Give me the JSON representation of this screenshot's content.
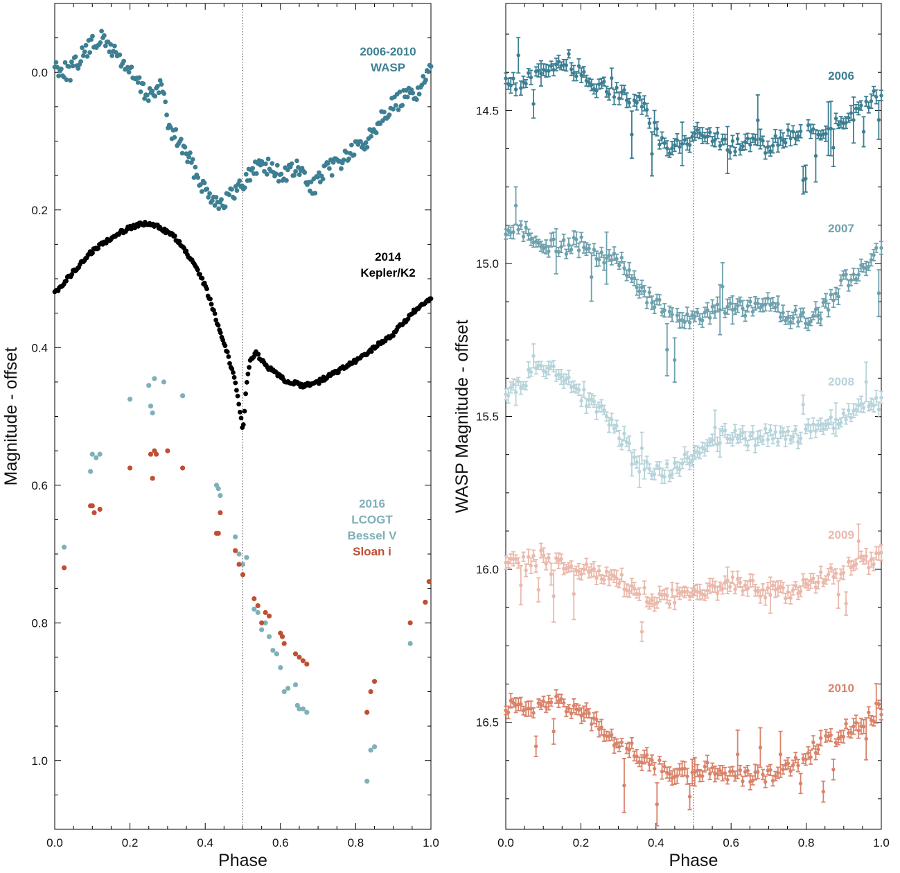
{
  "colors": {
    "wasp_2006": "#3d7f92",
    "wasp_2007": "#6ea1ad",
    "wasp_2008": "#b8d4db",
    "wasp_2009": "#eab9ab",
    "wasp_2010": "#d9836b",
    "kepler": "#000000",
    "lcogt_v": "#7fb0b8",
    "lcogt_i": "#bf4f33",
    "axis": "#000000"
  },
  "chart_data": [
    {
      "type": "scatter",
      "xlabel": "Phase",
      "ylabel": "Magnitude - offset",
      "xlim": [
        0.0,
        1.0
      ],
      "ylim": [
        1.1,
        -0.1
      ],
      "y_inverted": true,
      "xticks": [
        "0.0",
        "0.2",
        "0.4",
        "0.6",
        "0.8",
        "1.0"
      ],
      "yticks": [
        "0.0",
        "0.2",
        "0.4",
        "0.6",
        "0.8",
        "1.0"
      ],
      "reference_line_x": 0.5,
      "annotations": [
        {
          "lines": [
            "2006-2010",
            "WASP"
          ],
          "color": "wasp_2006"
        },
        {
          "lines": [
            "2014",
            "Kepler/K2"
          ],
          "color": "kepler"
        },
        {
          "lines": [
            "2016",
            "LCOGT",
            "Bessel V"
          ],
          "color": "lcogt_v"
        },
        {
          "lines": [
            "Sloan i"
          ],
          "color": "lcogt_i"
        }
      ],
      "series": [
        {
          "key": "wasp",
          "color": "wasp_2006",
          "marker": "dot",
          "nodes": [
            [
              0.0,
              -0.01
            ],
            [
              0.04,
              0.0
            ],
            [
              0.08,
              -0.03
            ],
            [
              0.12,
              -0.05
            ],
            [
              0.16,
              -0.03
            ],
            [
              0.2,
              0.0
            ],
            [
              0.24,
              0.03
            ],
            [
              0.27,
              0.03
            ],
            [
              0.29,
              0.02
            ],
            [
              0.3,
              0.08
            ],
            [
              0.33,
              0.1
            ],
            [
              0.36,
              0.13
            ],
            [
              0.4,
              0.17
            ],
            [
              0.44,
              0.19
            ],
            [
              0.47,
              0.18
            ],
            [
              0.5,
              0.16
            ],
            [
              0.55,
              0.13
            ],
            [
              0.6,
              0.15
            ],
            [
              0.65,
              0.14
            ],
            [
              0.68,
              0.17
            ],
            [
              0.73,
              0.14
            ],
            [
              0.78,
              0.12
            ],
            [
              0.83,
              0.1
            ],
            [
              0.87,
              0.06
            ],
            [
              0.92,
              0.04
            ],
            [
              0.96,
              0.03
            ],
            [
              1.0,
              0.0
            ]
          ]
        },
        {
          "key": "kepler",
          "color": "kepler",
          "marker": "dot",
          "nodes": [
            [
              0.0,
              0.32
            ],
            [
              0.05,
              0.29
            ],
            [
              0.1,
              0.26
            ],
            [
              0.15,
              0.24
            ],
            [
              0.2,
              0.225
            ],
            [
              0.24,
              0.22
            ],
            [
              0.28,
              0.225
            ],
            [
              0.32,
              0.24
            ],
            [
              0.36,
              0.27
            ],
            [
              0.4,
              0.31
            ],
            [
              0.43,
              0.36
            ],
            [
              0.46,
              0.41
            ],
            [
              0.48,
              0.45
            ],
            [
              0.495,
              0.5
            ],
            [
              0.5,
              0.52
            ],
            [
              0.505,
              0.49
            ],
            [
              0.51,
              0.45
            ],
            [
              0.52,
              0.42
            ],
            [
              0.535,
              0.405
            ],
            [
              0.55,
              0.42
            ],
            [
              0.58,
              0.435
            ],
            [
              0.62,
              0.45
            ],
            [
              0.66,
              0.455
            ],
            [
              0.7,
              0.45
            ],
            [
              0.75,
              0.435
            ],
            [
              0.8,
              0.42
            ],
            [
              0.85,
              0.4
            ],
            [
              0.9,
              0.38
            ],
            [
              0.95,
              0.35
            ],
            [
              1.0,
              0.33
            ]
          ]
        },
        {
          "key": "lcogt_v",
          "color": "lcogt_v",
          "marker": "dot",
          "points": [
            [
              0.025,
              0.69
            ],
            [
              0.095,
              0.58
            ],
            [
              0.1,
              0.555
            ],
            [
              0.11,
              0.56
            ],
            [
              0.12,
              0.555
            ],
            [
              0.2,
              0.475
            ],
            [
              0.25,
              0.455
            ],
            [
              0.255,
              0.485
            ],
            [
              0.26,
              0.495
            ],
            [
              0.265,
              0.445
            ],
            [
              0.29,
              0.45
            ],
            [
              0.34,
              0.47
            ],
            [
              0.43,
              0.6
            ],
            [
              0.435,
              0.605
            ],
            [
              0.44,
              0.615
            ],
            [
              0.48,
              0.675
            ],
            [
              0.49,
              0.7
            ],
            [
              0.5,
              0.715
            ],
            [
              0.51,
              0.705
            ],
            [
              0.53,
              0.78
            ],
            [
              0.54,
              0.785
            ],
            [
              0.55,
              0.81
            ],
            [
              0.56,
              0.8
            ],
            [
              0.57,
              0.82
            ],
            [
              0.58,
              0.84
            ],
            [
              0.59,
              0.845
            ],
            [
              0.6,
              0.865
            ],
            [
              0.61,
              0.9
            ],
            [
              0.62,
              0.895
            ],
            [
              0.64,
              0.89
            ],
            [
              0.645,
              0.92
            ],
            [
              0.65,
              0.925
            ],
            [
              0.66,
              0.925
            ],
            [
              0.67,
              0.93
            ],
            [
              0.83,
              1.03
            ],
            [
              0.84,
              0.985
            ],
            [
              0.85,
              0.98
            ],
            [
              0.945,
              0.83
            ],
            [
              0.985,
              0.77
            ]
          ]
        },
        {
          "key": "lcogt_i",
          "color": "lcogt_i",
          "marker": "dot",
          "points": [
            [
              0.025,
              0.72
            ],
            [
              0.095,
              0.63
            ],
            [
              0.1,
              0.63
            ],
            [
              0.105,
              0.64
            ],
            [
              0.12,
              0.635
            ],
            [
              0.2,
              0.575
            ],
            [
              0.255,
              0.555
            ],
            [
              0.26,
              0.59
            ],
            [
              0.265,
              0.55
            ],
            [
              0.27,
              0.555
            ],
            [
              0.3,
              0.55
            ],
            [
              0.34,
              0.575
            ],
            [
              0.43,
              0.67
            ],
            [
              0.435,
              0.67
            ],
            [
              0.44,
              0.64
            ],
            [
              0.48,
              0.695
            ],
            [
              0.49,
              0.715
            ],
            [
              0.5,
              0.73
            ],
            [
              0.53,
              0.765
            ],
            [
              0.54,
              0.775
            ],
            [
              0.55,
              0.8
            ],
            [
              0.56,
              0.785
            ],
            [
              0.57,
              0.79
            ],
            [
              0.6,
              0.815
            ],
            [
              0.605,
              0.82
            ],
            [
              0.61,
              0.83
            ],
            [
              0.64,
              0.845
            ],
            [
              0.65,
              0.85
            ],
            [
              0.66,
              0.855
            ],
            [
              0.67,
              0.86
            ],
            [
              0.83,
              0.93
            ],
            [
              0.84,
              0.9
            ],
            [
              0.85,
              0.885
            ],
            [
              0.945,
              0.8
            ],
            [
              0.985,
              0.77
            ],
            [
              0.995,
              0.74
            ]
          ]
        }
      ]
    },
    {
      "type": "scatter",
      "xlabel": "Phase",
      "ylabel": "WASP Magnitude - offset",
      "xlim": [
        0.0,
        1.0
      ],
      "ylim": [
        16.85,
        14.15
      ],
      "y_inverted": true,
      "xticks": [
        "0.0",
        "0.2",
        "0.4",
        "0.6",
        "0.8",
        "1.0"
      ],
      "yticks": [
        "14.5",
        "15.0",
        "15.5",
        "16.0",
        "16.5"
      ],
      "reference_line_x": 0.5,
      "error_bars": true,
      "series": [
        {
          "name": "2006",
          "color": "wasp_2006",
          "nodes": [
            [
              0.0,
              14.4
            ],
            [
              0.04,
              14.42
            ],
            [
              0.08,
              14.38
            ],
            [
              0.12,
              14.35
            ],
            [
              0.16,
              14.33
            ],
            [
              0.2,
              14.38
            ],
            [
              0.24,
              14.42
            ],
            [
              0.28,
              14.43
            ],
            [
              0.32,
              14.45
            ],
            [
              0.36,
              14.47
            ],
            [
              0.4,
              14.58
            ],
            [
              0.44,
              14.62
            ],
            [
              0.48,
              14.6
            ],
            [
              0.52,
              14.57
            ],
            [
              0.56,
              14.58
            ],
            [
              0.6,
              14.62
            ],
            [
              0.64,
              14.6
            ],
            [
              0.68,
              14.62
            ],
            [
              0.72,
              14.6
            ],
            [
              0.76,
              14.58
            ],
            [
              0.8,
              14.57
            ],
            [
              0.84,
              14.58
            ],
            [
              0.88,
              14.54
            ],
            [
              0.92,
              14.52
            ],
            [
              0.96,
              14.47
            ],
            [
              1.0,
              14.44
            ]
          ]
        },
        {
          "name": "2007",
          "color": "wasp_2007",
          "nodes": [
            [
              0.0,
              14.9
            ],
            [
              0.05,
              14.9
            ],
            [
              0.1,
              14.93
            ],
            [
              0.15,
              14.95
            ],
            [
              0.2,
              14.93
            ],
            [
              0.25,
              14.97
            ],
            [
              0.28,
              14.98
            ],
            [
              0.3,
              14.99
            ],
            [
              0.35,
              15.07
            ],
            [
              0.4,
              15.14
            ],
            [
              0.45,
              15.16
            ],
            [
              0.5,
              15.18
            ],
            [
              0.55,
              15.16
            ],
            [
              0.6,
              15.14
            ],
            [
              0.65,
              15.15
            ],
            [
              0.7,
              15.13
            ],
            [
              0.75,
              15.17
            ],
            [
              0.8,
              15.18
            ],
            [
              0.85,
              15.15
            ],
            [
              0.9,
              15.06
            ],
            [
              0.95,
              15.01
            ],
            [
              1.0,
              14.95
            ]
          ]
        },
        {
          "name": "2008",
          "color": "wasp_2008",
          "nodes": [
            [
              0.0,
              15.42
            ],
            [
              0.05,
              15.38
            ],
            [
              0.1,
              15.34
            ],
            [
              0.15,
              15.36
            ],
            [
              0.2,
              15.43
            ],
            [
              0.25,
              15.47
            ],
            [
              0.3,
              15.55
            ],
            [
              0.35,
              15.65
            ],
            [
              0.4,
              15.68
            ],
            [
              0.45,
              15.67
            ],
            [
              0.5,
              15.62
            ],
            [
              0.55,
              15.58
            ],
            [
              0.6,
              15.56
            ],
            [
              0.65,
              15.58
            ],
            [
              0.7,
              15.56
            ],
            [
              0.75,
              15.57
            ],
            [
              0.8,
              15.55
            ],
            [
              0.85,
              15.53
            ],
            [
              0.9,
              15.51
            ],
            [
              0.95,
              15.47
            ],
            [
              1.0,
              15.45
            ]
          ]
        },
        {
          "name": "2009",
          "color": "wasp_2009",
          "nodes": [
            [
              0.0,
              15.98
            ],
            [
              0.05,
              15.98
            ],
            [
              0.1,
              15.96
            ],
            [
              0.15,
              15.98
            ],
            [
              0.2,
              16.0
            ],
            [
              0.25,
              16.01
            ],
            [
              0.3,
              16.03
            ],
            [
              0.35,
              16.07
            ],
            [
              0.4,
              16.1
            ],
            [
              0.45,
              16.09
            ],
            [
              0.5,
              16.08
            ],
            [
              0.55,
              16.06
            ],
            [
              0.6,
              16.05
            ],
            [
              0.65,
              16.06
            ],
            [
              0.7,
              16.07
            ],
            [
              0.75,
              16.08
            ],
            [
              0.8,
              16.05
            ],
            [
              0.85,
              16.02
            ],
            [
              0.9,
              15.99
            ],
            [
              0.95,
              15.97
            ],
            [
              1.0,
              15.97
            ]
          ]
        },
        {
          "name": "2010",
          "color": "wasp_2010",
          "nodes": [
            [
              0.0,
              16.45
            ],
            [
              0.05,
              16.45
            ],
            [
              0.1,
              16.44
            ],
            [
              0.15,
              16.44
            ],
            [
              0.2,
              16.47
            ],
            [
              0.25,
              16.52
            ],
            [
              0.3,
              16.57
            ],
            [
              0.35,
              16.6
            ],
            [
              0.4,
              16.64
            ],
            [
              0.45,
              16.66
            ],
            [
              0.5,
              16.66
            ],
            [
              0.55,
              16.65
            ],
            [
              0.6,
              16.67
            ],
            [
              0.65,
              16.68
            ],
            [
              0.7,
              16.67
            ],
            [
              0.75,
              16.66
            ],
            [
              0.8,
              16.6
            ],
            [
              0.85,
              16.57
            ],
            [
              0.9,
              16.53
            ],
            [
              0.95,
              16.5
            ],
            [
              1.0,
              16.46
            ]
          ]
        }
      ]
    }
  ]
}
